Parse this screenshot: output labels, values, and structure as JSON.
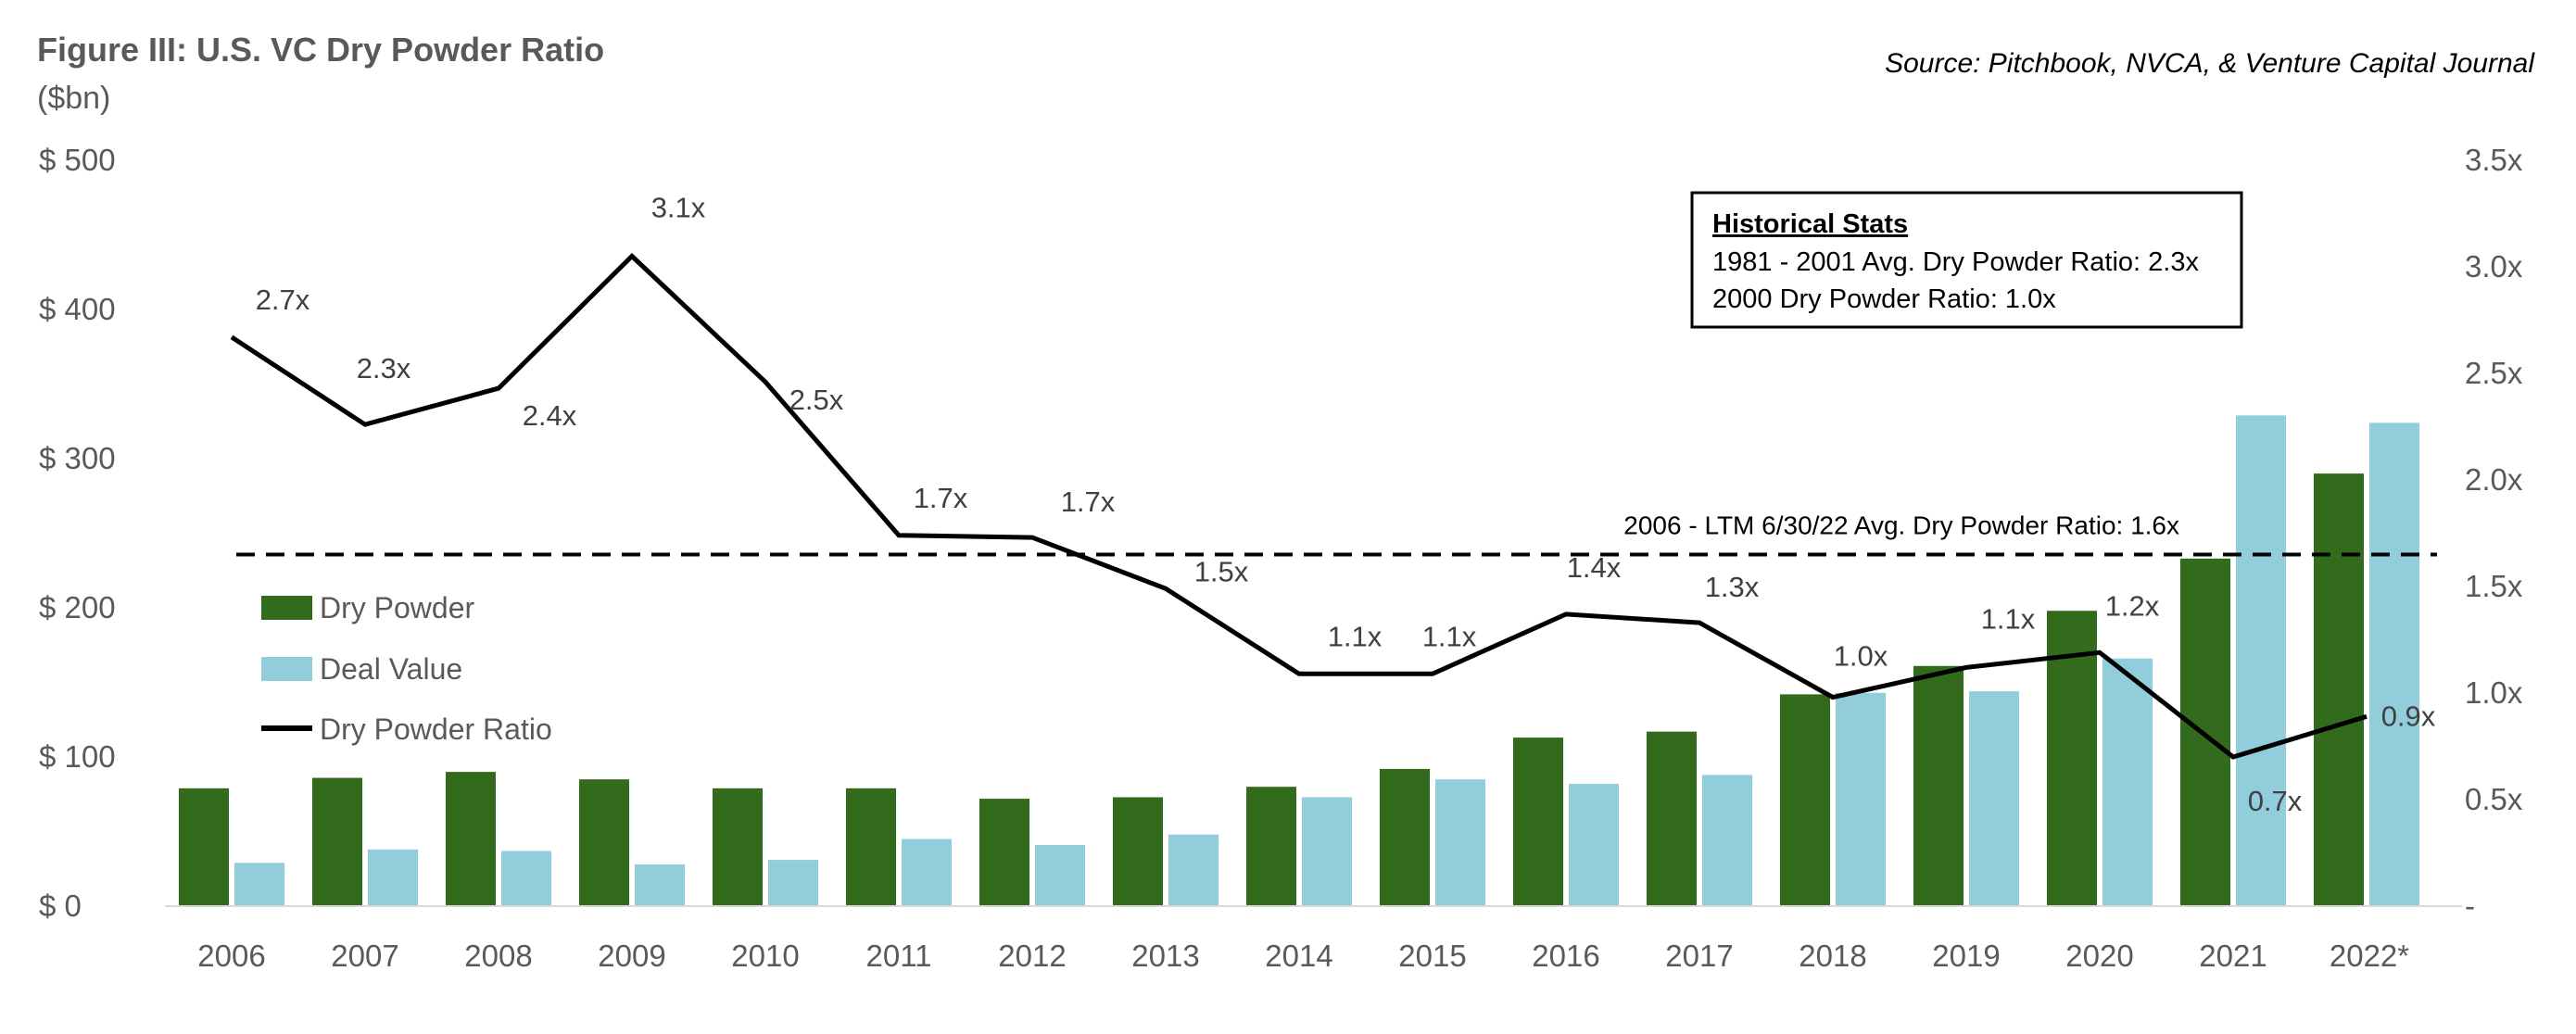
{
  "chart_data": {
    "type": "bar",
    "title": "Figure III: U.S. VC Dry Powder Ratio",
    "unit_label": "($bn)",
    "source": "Source: Pitchbook, NVCA, & Venture Capital Journal",
    "categories": [
      "2006",
      "2007",
      "2008",
      "2009",
      "2010",
      "2011",
      "2012",
      "2013",
      "2014",
      "2015",
      "2016",
      "2017",
      "2018",
      "2019",
      "2020",
      "2021",
      "2022*"
    ],
    "series": [
      {
        "name": "Dry Powder",
        "type": "bar",
        "axis": "left",
        "color": "#336b1d",
        "values": [
          79,
          86,
          90,
          85,
          79,
          79,
          72,
          73,
          80,
          92,
          113,
          117,
          142,
          161,
          198,
          233,
          290
        ]
      },
      {
        "name": "Deal Value",
        "type": "bar",
        "axis": "left",
        "color": "#92cddc",
        "values": [
          29,
          38,
          37,
          28,
          31,
          45,
          41,
          48,
          73,
          85,
          82,
          88,
          143,
          144,
          166,
          329,
          324
        ]
      },
      {
        "name": "Dry Powder Ratio",
        "type": "line",
        "axis": "right",
        "color": "#000000",
        "values": [
          2.67,
          2.26,
          2.43,
          3.05,
          2.46,
          1.74,
          1.73,
          1.49,
          1.09,
          1.09,
          1.37,
          1.33,
          0.98,
          1.12,
          1.19,
          0.7,
          0.89
        ],
        "labels": [
          "2.7x",
          "2.3x",
          "2.4x",
          "3.1x",
          "2.5x",
          "1.7x",
          "1.7x",
          "1.5x",
          "1.1x",
          "1.1x",
          "1.4x",
          "1.3x",
          "1.0x",
          "1.1x",
          "1.2x",
          "0.7x",
          "0.9x"
        ]
      }
    ],
    "left_axis": {
      "ylim": [
        0,
        500
      ],
      "ticks": [
        0,
        100,
        200,
        300,
        400,
        500
      ],
      "tick_labels": [
        "$ 0",
        "$ 100",
        "$ 200",
        "$ 300",
        "$ 400",
        "$ 500"
      ]
    },
    "right_axis": {
      "ylim": [
        0,
        3.5
      ],
      "ticks": [
        0,
        0.5,
        1.0,
        1.5,
        2.0,
        2.5,
        3.0,
        3.5
      ],
      "tick_labels": [
        "-",
        "0.5x",
        "1.0x",
        "1.5x",
        "2.0x",
        "2.5x",
        "3.0x",
        "3.5x"
      ]
    },
    "reference_line": {
      "value": 1.65,
      "axis": "right",
      "style": "dashed",
      "label": "2006 - LTM 6/30/22 Avg. Dry Powder Ratio: 1.6x"
    },
    "legend": {
      "position": "left-middle",
      "entries": [
        "Dry Powder",
        "Deal Value",
        "Dry Powder Ratio"
      ]
    },
    "annotation_box": {
      "title": "Historical Stats",
      "lines": [
        "1981 - 2001 Avg. Dry Powder Ratio: 2.3x",
        "2000 Dry Powder Ratio: 1.0x"
      ]
    },
    "grid": false
  }
}
